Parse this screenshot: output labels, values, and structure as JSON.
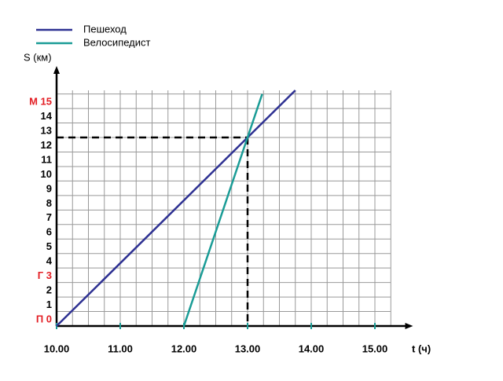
{
  "chart_data": {
    "type": "line",
    "legend": [
      "Пешеход",
      "Велосипедист"
    ],
    "ylabel": "S (км)",
    "xlabel": "t (ч)",
    "series": [
      {
        "name": "Пешеход",
        "color": "#2e3192",
        "x": [
          10,
          13.75
        ],
        "values": [
          0,
          16.25
        ]
      },
      {
        "name": "Велосипедист",
        "color": "#1a9c96",
        "x": [
          12,
          13.23
        ],
        "values": [
          0,
          16
        ]
      }
    ],
    "intersection": {
      "x": 13,
      "y": 13
    },
    "xlim": [
      10,
      15.5
    ],
    "ylim": [
      0,
      17.5
    ],
    "xticks": [
      {
        "value": 10,
        "label": "10.00"
      },
      {
        "value": 11,
        "label": "11.00"
      },
      {
        "value": 12,
        "label": "12.00"
      },
      {
        "value": 13,
        "label": "13.00"
      },
      {
        "value": 14,
        "label": "14.00"
      },
      {
        "value": 15,
        "label": "15.00"
      }
    ],
    "yticks": [
      {
        "value": 0,
        "label": "П  0",
        "color": "#e31e24"
      },
      1,
      2,
      {
        "value": 3,
        "label": "Г 3",
        "color": "#e31e24"
      },
      4,
      5,
      6,
      7,
      8,
      9,
      10,
      11,
      12,
      13,
      14,
      {
        "value": 15,
        "label": "М 15",
        "color": "#e31e24"
      }
    ],
    "grid": true
  }
}
